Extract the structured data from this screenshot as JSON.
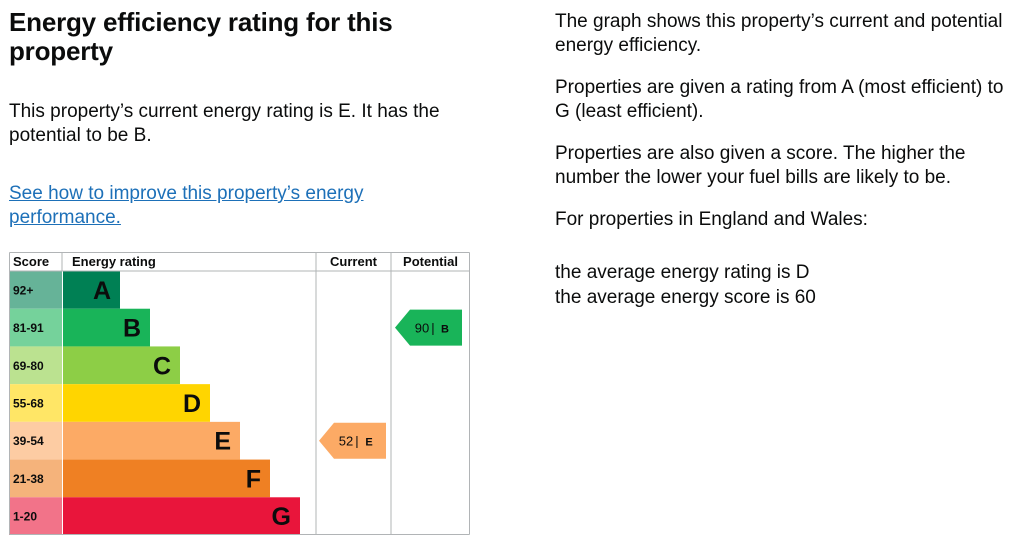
{
  "heading": "Energy efficiency rating for this property",
  "summary": "This property’s current energy rating is E. It has the potential to be B.",
  "improve_link": "See how to improve this property’s energy performance.",
  "info": {
    "p1": "The graph shows this property’s current and potential energy efficiency.",
    "p2": "Properties are given a rating from A (most efficient) to G (least efficient).",
    "p3": "Properties are also given a score. The higher the number the lower your fuel bills are likely to be.",
    "p4": "For properties in England and Wales:",
    "avg_rating": "the average energy rating is D",
    "avg_score": "the average energy score is 60"
  },
  "graph": {
    "headers": {
      "score": "Score",
      "rating": "Energy rating",
      "current": "Current",
      "potential": "Potential"
    },
    "bands": [
      {
        "score": "92+",
        "letter": "A",
        "color": "#008054",
        "score_bg": "#66b398"
      },
      {
        "score": "81-91",
        "letter": "B",
        "color": "#19b459",
        "score_bg": "#75d29b"
      },
      {
        "score": "69-80",
        "letter": "C",
        "color": "#8dce46",
        "score_bg": "#bbe290"
      },
      {
        "score": "55-68",
        "letter": "D",
        "color": "#ffd500",
        "score_bg": "#ffe666"
      },
      {
        "score": "39-54",
        "letter": "E",
        "color": "#fcaa65",
        "score_bg": "#fdcca3"
      },
      {
        "score": "21-38",
        "letter": "F",
        "color": "#ef8023",
        "score_bg": "#f5b37b"
      },
      {
        "score": "1-20",
        "letter": "G",
        "color": "#e9153b",
        "score_bg": "#f27389"
      }
    ],
    "current": {
      "score": "52",
      "letter": "E",
      "band_index": 4
    },
    "potential": {
      "score": "90",
      "letter": "B",
      "band_index": 1
    }
  }
}
